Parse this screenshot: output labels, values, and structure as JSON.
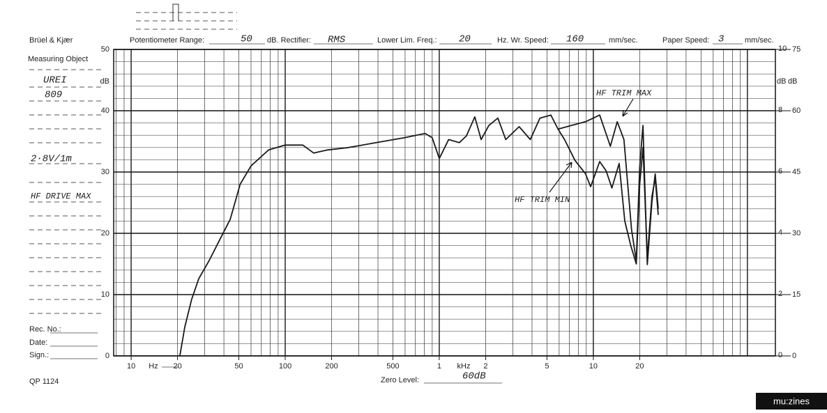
{
  "chart_data": {
    "type": "line",
    "xscale": "log",
    "xlim": [
      7.7,
      152000
    ],
    "ylim": [
      0,
      50
    ],
    "xticks": [
      10,
      20,
      50,
      100,
      200,
      500,
      {
        "value": 1000,
        "label": "1"
      },
      {
        "value": 2000,
        "label": "2"
      },
      {
        "value": 5000,
        "label": "5"
      },
      {
        "value": 10000,
        "label": "10"
      },
      {
        "value": 20000,
        "label": "20"
      }
    ],
    "yticks": [
      0,
      10,
      20,
      30,
      40,
      50
    ],
    "y_label": "dB",
    "y2lim": [
      0,
      10
    ],
    "y2ticks": [
      0,
      2,
      4,
      6,
      8,
      10
    ],
    "y2_label": "dB",
    "y3lim": [
      0,
      75
    ],
    "y3ticks": [
      0,
      15,
      30,
      45,
      60,
      75
    ],
    "y3_label": "dB",
    "x_unit_low": "Hz",
    "x_unit_high": "kHz",
    "grid": true,
    "series": [
      {
        "name": "HF TRIM MAX",
        "color": "#1a1a1a",
        "x": [
          20.7,
          22.3,
          24.7,
          27.5,
          32,
          37.5,
          44,
          51,
          60,
          78,
          100,
          130,
          153,
          188,
          258,
          390,
          593,
          810,
          900,
          1000,
          1150,
          1350,
          1500,
          1700,
          1870,
          2100,
          2400,
          2700,
          3300,
          3900,
          4500,
          5300,
          5900,
          7200,
          8900,
          11000,
          12900,
          14300,
          15800,
          17700,
          19000,
          20000,
          21000,
          22400,
          24000,
          25200,
          26400
        ],
        "values": [
          0,
          4.7,
          9.2,
          12.6,
          15.5,
          18.9,
          22.3,
          28,
          31,
          33.6,
          34.4,
          34.4,
          33.1,
          33.6,
          34,
          34.8,
          35.6,
          36.3,
          35.6,
          32.2,
          35.3,
          34.8,
          35.9,
          39,
          35.3,
          37.6,
          38.8,
          35.3,
          37.4,
          35.3,
          38.8,
          39.3,
          37,
          37.6,
          38.2,
          39.3,
          34.2,
          38.2,
          35.3,
          20.6,
          15.5,
          30.8,
          37.6,
          14.9,
          25.1,
          29.7,
          24
        ]
      },
      {
        "name": "HF TRIM MIN",
        "color": "#1a1a1a",
        "x": [
          5900,
          6500,
          7600,
          8900,
          9600,
          11000,
          12100,
          13200,
          14700,
          16000,
          17500,
          19000,
          20000,
          21000,
          22400,
          24000,
          25200,
          26400
        ],
        "values": [
          37,
          35.3,
          31.9,
          29.7,
          27.6,
          31.7,
          30.2,
          27.4,
          31.4,
          22,
          18,
          15,
          28,
          34,
          16,
          26,
          29,
          23
        ]
      }
    ]
  },
  "form": {
    "brand": "Brüel & Kjær",
    "measuring_object": "Measuring Object",
    "object_line1": "UREI",
    "object_line2": "809",
    "object_line3": "2·8V/1m",
    "object_line4": "HF DRIVE MAX",
    "pot_range_label": "Potentiometer Range:",
    "pot_range_value": "50",
    "rectifier_label": "dB. Rectifier:",
    "rectifier_value": "RMS",
    "lower_freq_label": "Lower Lim. Freq.:",
    "lower_freq_value": "20",
    "wr_speed_label": "Hz. Wr. Speed:",
    "wr_speed_value": "160",
    "wr_speed_unit": "mm/sec.",
    "paper_speed_label": "Paper Speed:",
    "paper_speed_value": "3",
    "paper_speed_unit": "mm/sec.",
    "rec_no": "Rec. No.:",
    "date": "Date:",
    "sign": "Sign.:",
    "form_code": "QP 1124",
    "zero_level_label": "Zero Level:",
    "zero_level_value": "60dB",
    "logo": "mu:zines"
  }
}
